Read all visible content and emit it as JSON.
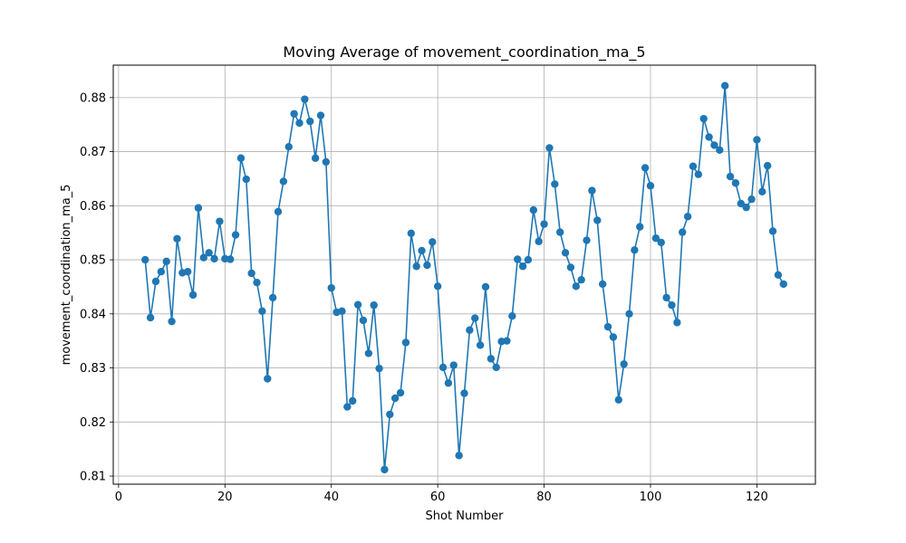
{
  "chart_data": {
    "type": "line",
    "title": "Moving Average of movement_coordination_ma_5",
    "xlabel": "Shot Number",
    "ylabel": "movement_coordination_ma_5",
    "xlim": [
      -1,
      131
    ],
    "ylim": [
      0.8085,
      0.886
    ],
    "xticks": [
      0,
      20,
      40,
      60,
      80,
      100,
      120
    ],
    "xtick_labels": [
      "0",
      "20",
      "40",
      "60",
      "80",
      "100",
      "120"
    ],
    "yticks": [
      0.81,
      0.82,
      0.83,
      0.84,
      0.85,
      0.86,
      0.87,
      0.88
    ],
    "ytick_labels": [
      "0.81",
      "0.82",
      "0.83",
      "0.84",
      "0.85",
      "0.86",
      "0.87",
      "0.88"
    ],
    "grid": true,
    "marker": "circle",
    "color": "#1f77b4",
    "x": [
      5,
      6,
      7,
      8,
      9,
      10,
      11,
      12,
      13,
      14,
      15,
      16,
      17,
      18,
      19,
      20,
      21,
      22,
      23,
      24,
      25,
      26,
      27,
      28,
      29,
      30,
      31,
      32,
      33,
      34,
      35,
      36,
      37,
      38,
      39,
      40,
      41,
      42,
      43,
      44,
      45,
      46,
      47,
      48,
      49,
      50,
      51,
      52,
      53,
      54,
      55,
      56,
      57,
      58,
      59,
      60,
      61,
      62,
      63,
      64,
      65,
      66,
      67,
      68,
      69,
      70,
      71,
      72,
      73,
      74,
      75,
      76,
      77,
      78,
      79,
      80,
      81,
      82,
      83,
      84,
      85,
      86,
      87,
      88,
      89,
      90,
      91,
      92,
      93,
      94,
      95,
      96,
      97,
      98,
      99,
      100,
      101,
      102,
      103,
      104,
      105,
      106,
      107,
      108,
      109,
      110,
      111,
      112,
      113,
      114,
      115,
      116,
      117,
      118,
      119,
      120,
      121,
      122,
      123,
      124,
      125
    ],
    "y": [
      0.85,
      0.8393,
      0.846,
      0.8478,
      0.8497,
      0.8386,
      0.8539,
      0.8476,
      0.8478,
      0.8435,
      0.8596,
      0.8504,
      0.8513,
      0.8502,
      0.8571,
      0.8502,
      0.8501,
      0.8546,
      0.8688,
      0.8649,
      0.8475,
      0.8458,
      0.8405,
      0.828,
      0.843,
      0.8589,
      0.8645,
      0.8709,
      0.877,
      0.8753,
      0.8797,
      0.8756,
      0.8688,
      0.8767,
      0.8681,
      0.8448,
      0.8403,
      0.8405,
      0.8228,
      0.8239,
      0.8417,
      0.8388,
      0.8327,
      0.8416,
      0.8299,
      0.8112,
      0.8214,
      0.8244,
      0.8254,
      0.8347,
      0.8549,
      0.8488,
      0.8517,
      0.849,
      0.8533,
      0.8451,
      0.8301,
      0.8272,
      0.8305,
      0.8138,
      0.8253,
      0.837,
      0.8392,
      0.8342,
      0.845,
      0.8317,
      0.8301,
      0.8349,
      0.835,
      0.8396,
      0.8501,
      0.8488,
      0.85,
      0.8592,
      0.8534,
      0.8566,
      0.8707,
      0.864,
      0.8551,
      0.8513,
      0.8486,
      0.8451,
      0.8463,
      0.8536,
      0.8628,
      0.8573,
      0.8455,
      0.8376,
      0.8357,
      0.8241,
      0.8307,
      0.84,
      0.8518,
      0.8561,
      0.867,
      0.8637,
      0.854,
      0.8532,
      0.843,
      0.8416,
      0.8384,
      0.8551,
      0.858,
      0.8673,
      0.8658,
      0.8761,
      0.8727,
      0.8712,
      0.8703,
      0.8822,
      0.8654,
      0.8642,
      0.8604,
      0.8597,
      0.8612,
      0.8722,
      0.8626,
      0.8674,
      0.8553,
      0.8472,
      0.8455
    ]
  }
}
